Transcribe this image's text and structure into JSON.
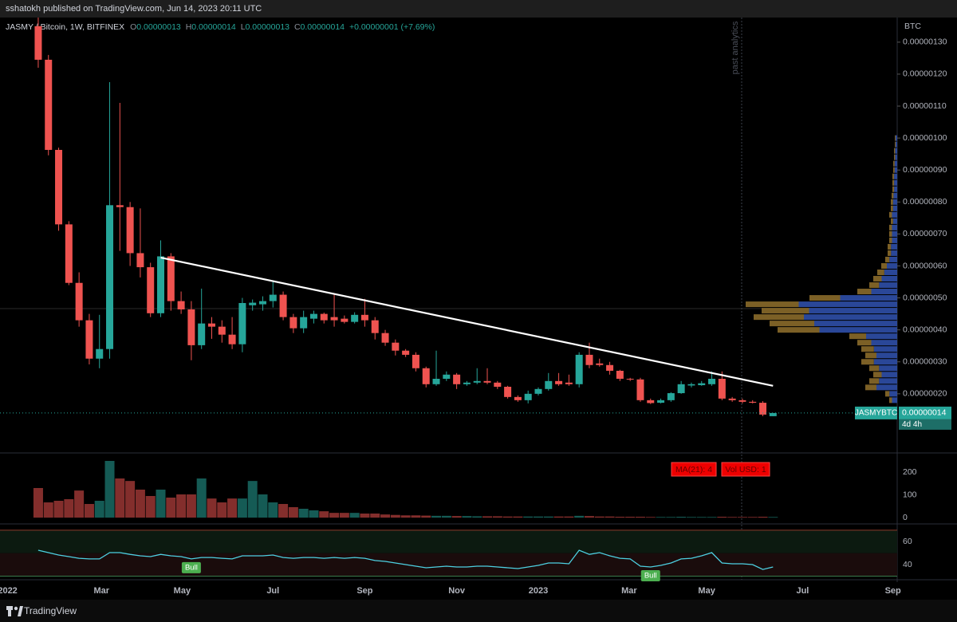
{
  "header": {
    "publisher": "sshatokh published on TradingView.com, Jun 14, 2023 20:11 UTC"
  },
  "footer": {
    "brand": "TradingView"
  },
  "chart_data": {
    "type": "candlestick",
    "title": "JASMY / Bitcoin, 1W, BITFINEX",
    "ohlc_legend": [
      {
        "label": "O",
        "value": "0.00000013"
      },
      {
        "label": "H",
        "value": "0.00000014"
      },
      {
        "label": "L",
        "value": "0.00000013"
      },
      {
        "label": "C",
        "value": "0.00000014"
      }
    ],
    "change": "+0.00000001 (+7.69%)",
    "annotation": "past analytics",
    "axis_unit": "BTC",
    "up_color": "#26a69a",
    "down_color": "#ef5350",
    "open": [
      1.35e-06,
      1.245e-06,
      9.63e-07,
      7.3e-07,
      5.47e-07,
      4.3e-07,
      3.1e-07,
      3.4e-07,
      7.9e-07,
      7.84e-07,
      6.4e-07,
      5.96e-07,
      4.52e-07,
      6.3e-07,
      4.9e-07,
      4.64e-07,
      3.52e-07,
      4.2e-07,
      4.1e-07,
      3.85e-07,
      3.55e-07,
      4.77e-07,
      4.8e-07,
      4.9e-07,
      5.1e-07,
      4.4e-07,
      4.05e-07,
      4.35e-07,
      4.5e-07,
      4.4e-07,
      4.35e-07,
      4.25e-07,
      4.47e-07,
      4.3e-07,
      3.9e-07,
      3.6e-07,
      3.35e-07,
      3.22e-07,
      2.8e-07,
      2.3e-07,
      2.47e-07,
      2.6e-07,
      2.3e-07,
      2.35e-07,
      2.4e-07,
      2.35e-07,
      2.22e-07,
      1.9e-07,
      1.8e-07,
      2e-07,
      2.15e-07,
      2.4e-07,
      2.35e-07,
      2.3e-07,
      3.22e-07,
      2.95e-07,
      2.9e-07,
      2.72e-07,
      2.47e-07,
      2.45e-07,
      1.8e-07,
      1.72e-07,
      1.8e-07,
      2.02e-07,
      2.26e-07,
      2.27e-07,
      2.3e-07,
      2.47e-07,
      1.85e-07,
      1.8e-07,
      1.75e-07,
      1.72e-07,
      1.3e-07
    ],
    "high": [
      1.4e-06,
      1.26e-06,
      9.7e-07,
      7.4e-07,
      5.8e-07,
      4.5e-07,
      4.47e-07,
      1.175e-06,
      1.11e-06,
      8e-07,
      7.8e-07,
      6.1e-07,
      6.8e-07,
      6.4e-07,
      5.2e-07,
      4.9e-07,
      5.29e-07,
      4.4e-07,
      4.3e-07,
      4.4e-07,
      5e-07,
      4.95e-07,
      5.05e-07,
      5.54e-07,
      5.2e-07,
      4.5e-07,
      4.6e-07,
      4.6e-07,
      4.54e-07,
      5.1e-07,
      4.45e-07,
      4.55e-07,
      4.97e-07,
      4.4e-07,
      4e-07,
      3.7e-07,
      3.4e-07,
      3.3e-07,
      2.85e-07,
      3.35e-07,
      2.7e-07,
      2.65e-07,
      2.4e-07,
      2.8e-07,
      2.8e-07,
      2.4e-07,
      2.25e-07,
      1.95e-07,
      2.1e-07,
      2.2e-07,
      2.65e-07,
      2.65e-07,
      2.6e-07,
      3.3e-07,
      3.6e-07,
      3.1e-07,
      3e-07,
      2.75e-07,
      2.5e-07,
      2.5e-07,
      1.85e-07,
      1.85e-07,
      2.05e-07,
      2.4e-07,
      2.35e-07,
      2.4e-07,
      2.7e-07,
      2.7e-07,
      1.9e-07,
      1.85e-07,
      1.8e-07,
      1.77e-07,
      1.4e-07
    ],
    "low": [
      1.22e-06,
      9.46e-07,
      7.1e-07,
      5.4e-07,
      4.1e-07,
      2.92e-07,
      2.8e-07,
      3.1e-07,
      6.47e-07,
      6e-07,
      5.64e-07,
      4.4e-07,
      4.4e-07,
      4.6e-07,
      4.5e-07,
      3.05e-07,
      3.4e-07,
      3.72e-07,
      3.6e-07,
      3.4e-07,
      3.3e-07,
      4.6e-07,
      4.6e-07,
      4.7e-07,
      4.3e-07,
      3.9e-07,
      3.9e-07,
      4.2e-07,
      4.2e-07,
      4.1e-07,
      4.2e-07,
      4.2e-07,
      4.1e-07,
      3.7e-07,
      3.5e-07,
      3.2e-07,
      3.15e-07,
      2.7e-07,
      2.2e-07,
      2.25e-07,
      2.4e-07,
      2.15e-07,
      2.25e-07,
      2.3e-07,
      2.3e-07,
      2.15e-07,
      1.85e-07,
      1.75e-07,
      1.7e-07,
      1.95e-07,
      2.1e-07,
      2.25e-07,
      2.25e-07,
      2.2e-07,
      2.8e-07,
      2.85e-07,
      2.6e-07,
      2.4e-07,
      2.4e-07,
      1.75e-07,
      1.68e-07,
      1.7e-07,
      1.75e-07,
      2e-07,
      2.2e-07,
      2.25e-07,
      2.25e-07,
      1.8e-07,
      1.75e-07,
      1.7e-07,
      1.7e-07,
      1.3e-07,
      1.3e-07
    ],
    "close": [
      1.245e-06,
      9.63e-07,
      7.3e-07,
      5.47e-07,
      4.3e-07,
      3.1e-07,
      3.4e-07,
      7.9e-07,
      7.84e-07,
      6.4e-07,
      5.96e-07,
      4.52e-07,
      6.3e-07,
      4.9e-07,
      4.64e-07,
      3.52e-07,
      4.2e-07,
      4.1e-07,
      3.85e-07,
      3.55e-07,
      4.84e-07,
      4.85e-07,
      4.9e-07,
      5.1e-07,
      4.4e-07,
      4.05e-07,
      4.4e-07,
      4.5e-07,
      4.3e-07,
      4.3e-07,
      4.25e-07,
      4.47e-07,
      4.3e-07,
      3.9e-07,
      3.6e-07,
      3.35e-07,
      3.22e-07,
      2.8e-07,
      2.3e-07,
      2.47e-07,
      2.6e-07,
      2.3e-07,
      2.35e-07,
      2.4e-07,
      2.35e-07,
      2.22e-07,
      1.9e-07,
      1.8e-07,
      2e-07,
      2.15e-07,
      2.4e-07,
      2.3e-07,
      2.3e-07,
      3.22e-07,
      2.9e-07,
      2.9e-07,
      2.72e-07,
      2.47e-07,
      2.45e-07,
      1.8e-07,
      1.71e-07,
      1.8e-07,
      2.02e-07,
      2.3e-07,
      2.3e-07,
      2.33e-07,
      2.47e-07,
      1.85e-07,
      1.8e-07,
      1.75e-07,
      1.72e-07,
      1.35e-07,
      1.4e-07
    ],
    "xlim": [
      -3.2,
      84.4
    ],
    "xticks": [
      {
        "value": -3,
        "label": "2022"
      },
      {
        "value": 6.2,
        "label": "Mar"
      },
      {
        "value": 14.1,
        "label": "May"
      },
      {
        "value": 23,
        "label": "Jul"
      },
      {
        "value": 32,
        "label": "Sep"
      },
      {
        "value": 41,
        "label": "Nov"
      },
      {
        "value": 49,
        "label": "2023"
      },
      {
        "value": 57.9,
        "label": "Mar"
      },
      {
        "value": 65.5,
        "label": "May"
      },
      {
        "value": 74.9,
        "label": "Jul"
      },
      {
        "value": 83.75,
        "label": "Sep"
      }
    ],
    "ylim": [
      1.5e-08,
      1.377e-06
    ],
    "yticks": [
      {
        "value": 2e-07,
        "label": "0.00000020"
      },
      {
        "value": 3e-07,
        "label": "0.00000030"
      },
      {
        "value": 4e-07,
        "label": "0.00000040"
      },
      {
        "value": 5e-07,
        "label": "0.00000050"
      },
      {
        "value": 6e-07,
        "label": "0.00000060"
      },
      {
        "value": 7e-07,
        "label": "0.00000070"
      },
      {
        "value": 8e-07,
        "label": "0.00000080"
      },
      {
        "value": 9e-07,
        "label": "0.00000090"
      },
      {
        "value": 1e-06,
        "label": "0.00000100"
      },
      {
        "value": 1.1e-06,
        "label": "0.00000110"
      },
      {
        "value": 1.2e-06,
        "label": "0.00000120"
      },
      {
        "value": 1.3e-06,
        "label": "0.00000130"
      }
    ],
    "last_price": {
      "symbol": "JASMYBTC",
      "value": 1.4e-07,
      "label": "0.00000014",
      "countdown": "4d 4h"
    },
    "trendline": {
      "x": [
        12,
        72
      ],
      "values": [
        6.26e-07,
        2.25e-07
      ]
    },
    "volume_profile": {
      "prices": [
        1.8e-07,
        2e-07,
        2.2e-07,
        2.4e-07,
        2.6e-07,
        2.8e-07,
        3e-07,
        3.2e-07,
        3.4e-07,
        3.6e-07,
        3.8e-07,
        4e-07,
        4.2e-07,
        4.4e-07,
        4.6e-07,
        4.8e-07,
        5e-07,
        5.2e-07,
        5.4e-07,
        5.6e-07,
        5.8e-07,
        6e-07,
        6.2e-07,
        6.4e-07,
        6.6e-07,
        6.8e-07,
        7e-07,
        7.2e-07,
        7.4e-07,
        7.6e-07,
        7.8e-07,
        8e-07,
        8.2e-07,
        8.4e-07,
        8.6e-07,
        8.8e-07,
        9e-07,
        9.2e-07,
        9.4e-07,
        9.6e-07,
        9.8e-07,
        1e-06
      ],
      "values": [
        10,
        15,
        40,
        35,
        30,
        35,
        45,
        40,
        45,
        50,
        60,
        150,
        160,
        180,
        170,
        190,
        110,
        50,
        35,
        30,
        25,
        20,
        15,
        12,
        12,
        10,
        10,
        10,
        8,
        10,
        8,
        8,
        7,
        6,
        6,
        6,
        5,
        5,
        4,
        4,
        3,
        3
      ]
    },
    "volume": {
      "labels": [
        "MA(21): 4",
        "Vol USD: 1"
      ],
      "ylim": [
        -10,
        277
      ],
      "yticks": [
        0,
        100,
        200
      ],
      "values": [
        130,
        67,
        74,
        81,
        119,
        60,
        74,
        249,
        172,
        161,
        123,
        95,
        123,
        88,
        102,
        102,
        172,
        84,
        67,
        84,
        84,
        161,
        102,
        67,
        60,
        46,
        39,
        32,
        28,
        21,
        21,
        21,
        18,
        18,
        14,
        12,
        10,
        10,
        9,
        8,
        8,
        7,
        7,
        6,
        6,
        6,
        5,
        5,
        5,
        5,
        5,
        5,
        5,
        8,
        7,
        5,
        5,
        4,
        4,
        4,
        3,
        3,
        3,
        4,
        3,
        3,
        3,
        4,
        3,
        3,
        3,
        4,
        3
      ]
    },
    "rsi": {
      "ylim": [
        29,
        72
      ],
      "yticks": [
        40,
        60
      ],
      "color": "#4dd0e1",
      "values": [
        52.6,
        50.5,
        48.4,
        47,
        45.6,
        45,
        45,
        50.5,
        50.5,
        49,
        47.7,
        47,
        49,
        47.7,
        47,
        45,
        46.3,
        46.3,
        45.6,
        45,
        47.7,
        47.7,
        47.7,
        48.4,
        46.3,
        45.6,
        46.3,
        46.3,
        45.6,
        46.3,
        45.6,
        46.3,
        45.6,
        43.6,
        42.9,
        41.5,
        40.1,
        38.7,
        37.3,
        38,
        38.7,
        38,
        38,
        38.7,
        38.7,
        38,
        37.3,
        36.6,
        38,
        39.4,
        41.5,
        41.5,
        40.8,
        52.6,
        49,
        50.5,
        47.7,
        45.6,
        45,
        38.7,
        38,
        39.4,
        41.5,
        45,
        45.6,
        47.7,
        50.5,
        41.5,
        40.8,
        40.8,
        40.1,
        35.9,
        38
      ],
      "annotations": [
        {
          "text": "Bull",
          "x": 15
        },
        {
          "text": "Bull",
          "x": 60
        }
      ]
    }
  }
}
